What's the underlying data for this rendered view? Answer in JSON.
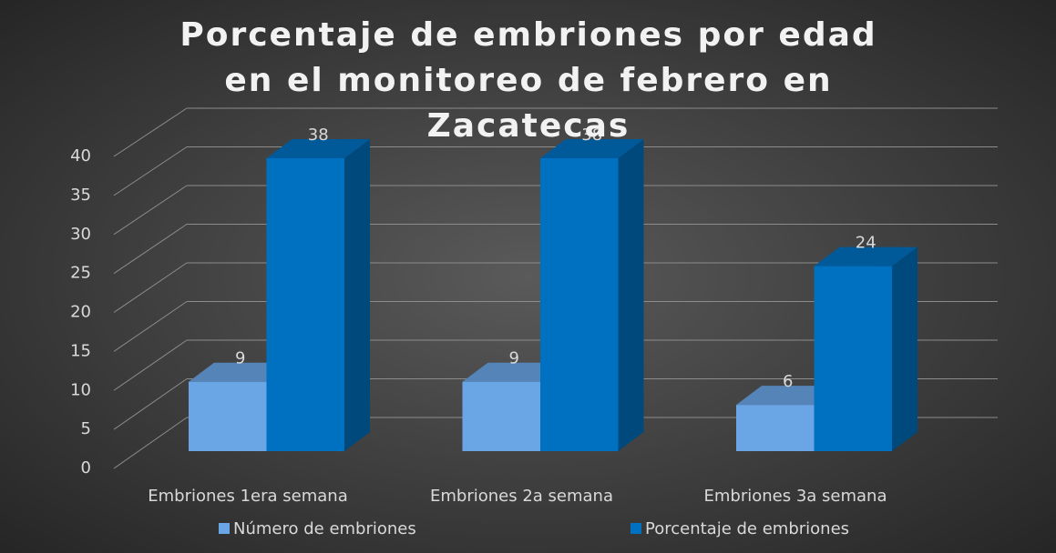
{
  "chart_data": {
    "type": "bar3d",
    "title": "Porcentaje de embriones por edad en el monitoreo de febrero en Zacatecas",
    "categories": [
      "Embriones 1era semana",
      "Embriones 2a semana",
      "Embriones 3a semana"
    ],
    "series": [
      {
        "name": "Número de embriones",
        "color": "#6aa6e6",
        "values": [
          9,
          9,
          6
        ]
      },
      {
        "name": "Porcentaje de embriones",
        "color": "#0070c0",
        "values": [
          38,
          38,
          24
        ]
      }
    ],
    "ylim": [
      0,
      40
    ],
    "yticks": [
      0,
      5,
      10,
      15,
      20,
      25,
      30,
      35,
      40
    ],
    "grid": true,
    "legend": "bottom"
  }
}
